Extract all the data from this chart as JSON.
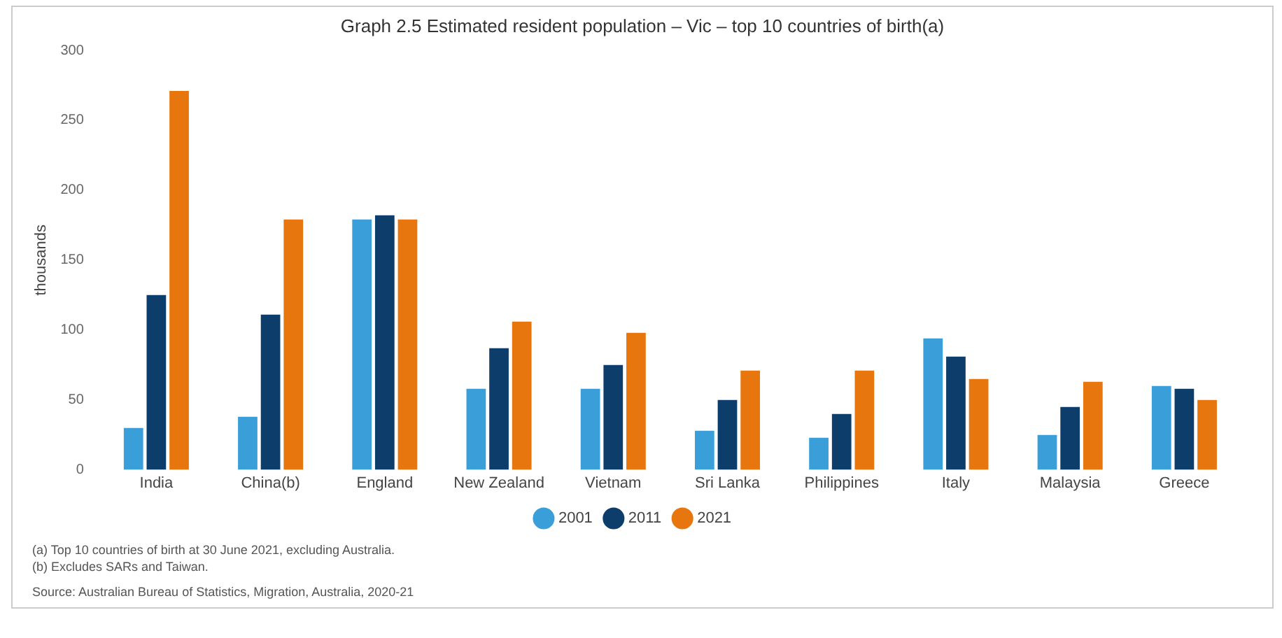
{
  "chart_data": {
    "type": "bar",
    "title": "Graph 2.5 Estimated resident population – Vic – top 10 countries of birth(a)",
    "ylabel": "thousands",
    "categories": [
      "India",
      "China(b)",
      "England",
      "New Zealand",
      "Vietnam",
      "Sri Lanka",
      "Philippines",
      "Italy",
      "Malaysia",
      "Greece"
    ],
    "series": [
      {
        "name": "2001",
        "color": "#3a9fd8",
        "values": [
          30,
          38,
          179,
          58,
          58,
          28,
          23,
          94,
          25,
          60
        ]
      },
      {
        "name": "2011",
        "color": "#0d3d6b",
        "values": [
          125,
          111,
          182,
          87,
          75,
          50,
          40,
          81,
          45,
          58
        ]
      },
      {
        "name": "2021",
        "color": "#e8760f",
        "values": [
          271,
          179,
          179,
          106,
          98,
          71,
          71,
          65,
          63,
          50
        ]
      }
    ],
    "ylim": [
      0,
      300
    ],
    "yticks": [
      0,
      50,
      100,
      150,
      200,
      250,
      300
    ],
    "grid": false,
    "legend": "bottom",
    "annotations": [
      "(a) Top 10 countries of birth at 30 June 2021, excluding Australia.",
      "(b) Excludes SARs and Taiwan.",
      "Source: Australian Bureau of Statistics, Migration, Australia, 2020-21"
    ]
  }
}
